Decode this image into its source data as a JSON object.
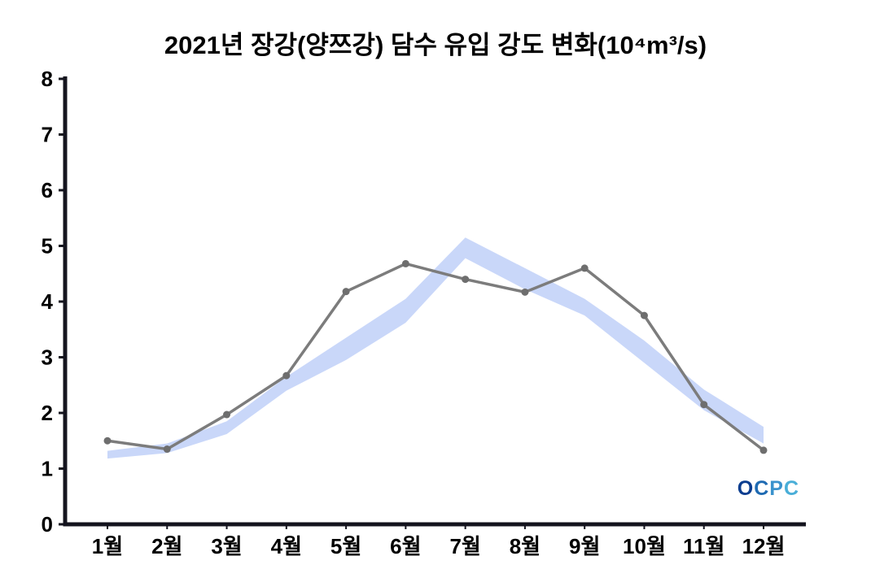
{
  "chart_data": {
    "type": "line",
    "title": "2021년 장강(양쯔강) 담수 유입 강도 변화(10⁴m³/s)",
    "categories": [
      "1월",
      "2월",
      "3월",
      "4월",
      "5월",
      "6월",
      "7월",
      "8월",
      "9월",
      "10월",
      "11월",
      "12월"
    ],
    "xlabel": "",
    "ylabel": "",
    "ylim": [
      0,
      8
    ],
    "yticks": [
      0,
      1,
      2,
      3,
      4,
      5,
      6,
      7,
      8
    ],
    "grid": false,
    "legend": "none",
    "axis_color": "#14141e",
    "series": [
      {
        "name": "observed-line-2021",
        "type": "line",
        "color": "#7c7c7c",
        "marker_color": "#6e6e6e",
        "values": [
          1.5,
          1.35,
          1.97,
          2.67,
          4.18,
          4.68,
          4.4,
          4.17,
          4.6,
          3.75,
          2.15,
          1.33
        ]
      },
      {
        "name": "climatology-band",
        "type": "band",
        "color": "#c6d5f9",
        "upper": [
          1.32,
          1.45,
          1.85,
          2.65,
          3.35,
          4.05,
          5.15,
          4.6,
          4.05,
          3.3,
          2.42,
          1.75
        ],
        "lower": [
          1.18,
          1.28,
          1.62,
          2.4,
          2.95,
          3.62,
          4.78,
          4.22,
          3.75,
          2.9,
          2.05,
          1.45
        ]
      }
    ]
  },
  "logo": {
    "text": "OCPC",
    "letters": [
      "O",
      "C",
      "P",
      "C"
    ],
    "colors": [
      "#0a3d8f",
      "#1e6ab2",
      "#3b93cd",
      "#49aed8"
    ]
  }
}
